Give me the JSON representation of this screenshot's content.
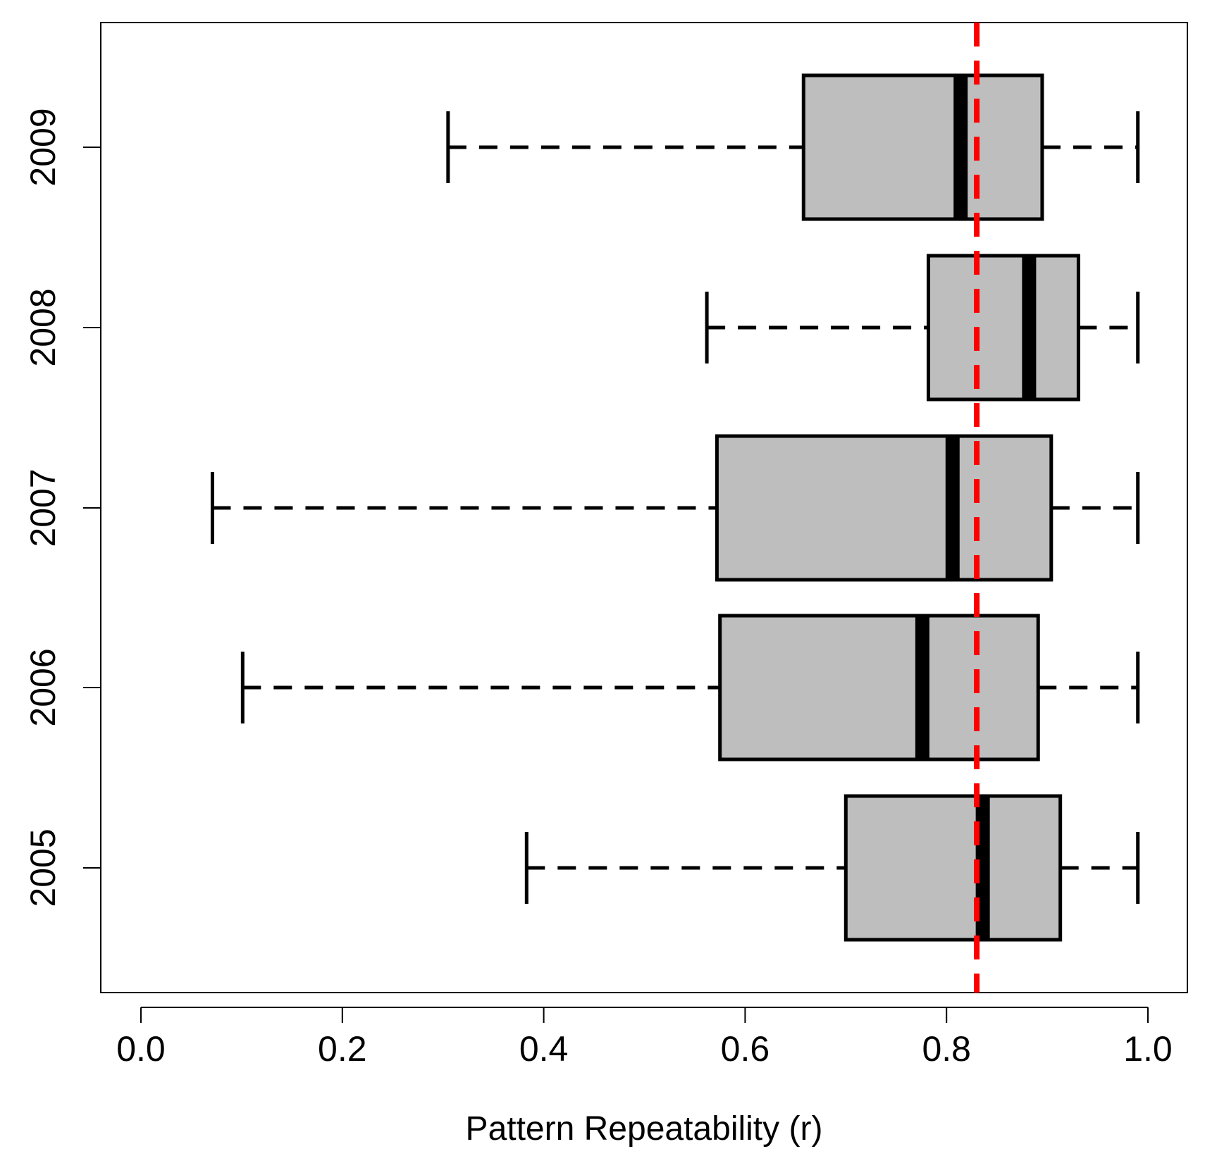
{
  "chart_data": {
    "type": "boxplot",
    "orientation": "horizontal",
    "title": "",
    "xlabel": "Pattern Repeatability (r)",
    "ylabel": "",
    "xlim": [
      0.0,
      1.0
    ],
    "x_ticks": [
      "0.0",
      "0.2",
      "0.4",
      "0.6",
      "0.8",
      "1.0"
    ],
    "categories": [
      "2005",
      "2006",
      "2007",
      "2008",
      "2009"
    ],
    "boxes": [
      {
        "category": "2005",
        "whisker_low": 0.383,
        "q1": 0.7,
        "median": 0.836,
        "q3": 0.913,
        "whisker_high": 0.99
      },
      {
        "category": "2006",
        "whisker_low": 0.101,
        "q1": 0.575,
        "median": 0.776,
        "q3": 0.891,
        "whisker_high": 0.99
      },
      {
        "category": "2007",
        "whisker_low": 0.071,
        "q1": 0.572,
        "median": 0.806,
        "q3": 0.904,
        "whisker_high": 0.99
      },
      {
        "category": "2008",
        "whisker_low": 0.562,
        "q1": 0.782,
        "median": 0.882,
        "q3": 0.931,
        "whisker_high": 0.99
      },
      {
        "category": "2009",
        "whisker_low": 0.305,
        "q1": 0.658,
        "median": 0.814,
        "q3": 0.895,
        "whisker_high": 0.99
      }
    ],
    "reference_line": {
      "x": 0.83,
      "style": "dashed",
      "color": "#ff0000"
    },
    "colors": {
      "box_fill": "#bebebe",
      "outline": "#000000",
      "reference": "#ff0000"
    }
  }
}
